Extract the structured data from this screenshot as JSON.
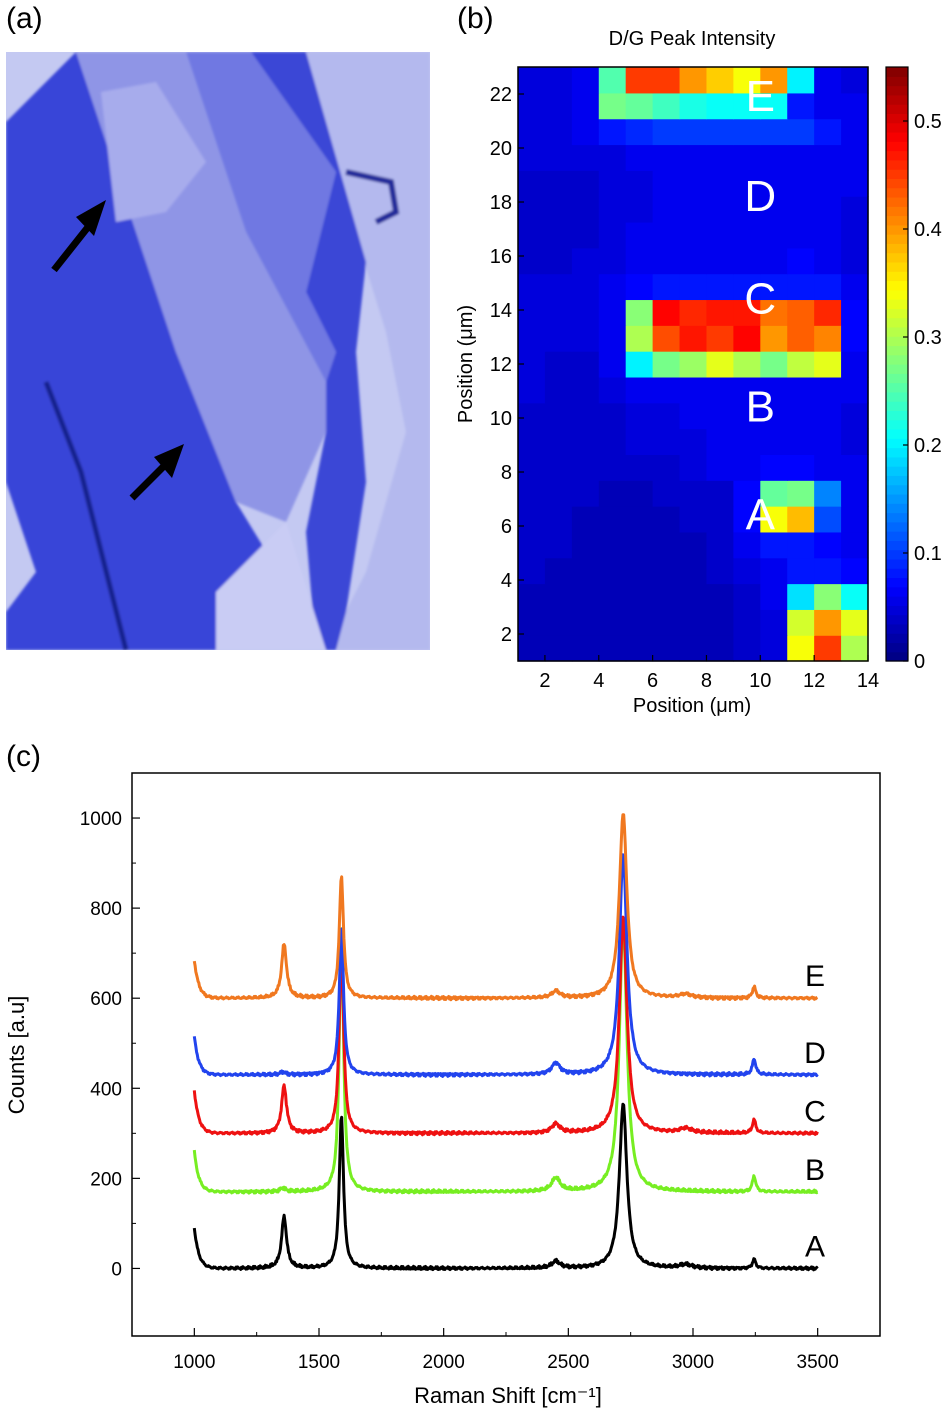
{
  "panels": {
    "a": {
      "label": "(a)"
    },
    "b": {
      "label": "(b)"
    },
    "c": {
      "label": "(c)"
    }
  },
  "chart_data": [
    {
      "panel": "b",
      "type": "heatmap",
      "title": "D/G Peak Intensity",
      "xlabel": "Position (μm)",
      "ylabel": "Position (μm)",
      "xlim": [
        1,
        14
      ],
      "ylim": [
        1,
        23
      ],
      "x_ticks": [
        2,
        4,
        6,
        8,
        10,
        12,
        14
      ],
      "y_ticks": [
        2,
        4,
        6,
        8,
        10,
        12,
        14,
        16,
        18,
        20,
        22
      ],
      "colorbar": {
        "min": 0,
        "max": 0.55,
        "ticks": [
          0,
          0.1,
          0.2,
          0.3,
          0.4,
          0.5
        ],
        "colormap": "jet"
      },
      "grid": false,
      "region_labels": [
        {
          "text": "E",
          "x": 10,
          "y": 22
        },
        {
          "text": "D",
          "x": 10,
          "y": 18.3
        },
        {
          "text": "C",
          "x": 10,
          "y": 14.5
        },
        {
          "text": "B",
          "x": 10,
          "y": 10.5
        },
        {
          "text": "A",
          "x": 10,
          "y": 6.5
        }
      ],
      "rows_bottom_to_top": [
        [
          0.03,
          0.03,
          0.03,
          0.03,
          0.03,
          0.03,
          0.03,
          0.03,
          0.04,
          0.05,
          0.34,
          0.45,
          0.3
        ],
        [
          0.03,
          0.03,
          0.03,
          0.03,
          0.03,
          0.03,
          0.03,
          0.03,
          0.04,
          0.05,
          0.32,
          0.4,
          0.33
        ],
        [
          0.03,
          0.03,
          0.03,
          0.03,
          0.03,
          0.03,
          0.03,
          0.03,
          0.04,
          0.06,
          0.19,
          0.28,
          0.21
        ],
        [
          0.04,
          0.03,
          0.03,
          0.03,
          0.03,
          0.03,
          0.03,
          0.04,
          0.05,
          0.06,
          0.08,
          0.08,
          0.07
        ],
        [
          0.04,
          0.04,
          0.03,
          0.03,
          0.03,
          0.03,
          0.03,
          0.04,
          0.06,
          0.08,
          0.08,
          0.07,
          0.06
        ],
        [
          0.04,
          0.04,
          0.03,
          0.03,
          0.03,
          0.03,
          0.04,
          0.04,
          0.07,
          0.34,
          0.38,
          0.11,
          0.06
        ],
        [
          0.04,
          0.04,
          0.04,
          0.03,
          0.03,
          0.04,
          0.04,
          0.04,
          0.07,
          0.26,
          0.27,
          0.14,
          0.06
        ],
        [
          0.04,
          0.04,
          0.04,
          0.04,
          0.04,
          0.04,
          0.05,
          0.06,
          0.06,
          0.07,
          0.07,
          0.06,
          0.06
        ],
        [
          0.04,
          0.04,
          0.04,
          0.04,
          0.05,
          0.05,
          0.05,
          0.06,
          0.06,
          0.06,
          0.06,
          0.06,
          0.05
        ],
        [
          0.04,
          0.04,
          0.04,
          0.04,
          0.05,
          0.05,
          0.06,
          0.06,
          0.06,
          0.06,
          0.06,
          0.06,
          0.05
        ],
        [
          0.05,
          0.04,
          0.04,
          0.05,
          0.06,
          0.06,
          0.06,
          0.06,
          0.06,
          0.06,
          0.06,
          0.06,
          0.06
        ],
        [
          0.05,
          0.04,
          0.04,
          0.06,
          0.2,
          0.27,
          0.29,
          0.33,
          0.3,
          0.27,
          0.31,
          0.33,
          0.06
        ],
        [
          0.05,
          0.05,
          0.05,
          0.06,
          0.3,
          0.44,
          0.47,
          0.45,
          0.48,
          0.4,
          0.43,
          0.41,
          0.07
        ],
        [
          0.05,
          0.05,
          0.05,
          0.06,
          0.28,
          0.48,
          0.46,
          0.47,
          0.47,
          0.42,
          0.43,
          0.46,
          0.07
        ],
        [
          0.05,
          0.05,
          0.05,
          0.06,
          0.07,
          0.08,
          0.08,
          0.08,
          0.08,
          0.08,
          0.08,
          0.08,
          0.06
        ],
        [
          0.04,
          0.04,
          0.05,
          0.05,
          0.06,
          0.06,
          0.06,
          0.06,
          0.06,
          0.06,
          0.07,
          0.06,
          0.05
        ],
        [
          0.04,
          0.04,
          0.04,
          0.05,
          0.06,
          0.06,
          0.06,
          0.06,
          0.06,
          0.06,
          0.06,
          0.06,
          0.05
        ],
        [
          0.04,
          0.04,
          0.04,
          0.05,
          0.05,
          0.06,
          0.06,
          0.06,
          0.06,
          0.06,
          0.06,
          0.06,
          0.05
        ],
        [
          0.04,
          0.04,
          0.04,
          0.05,
          0.05,
          0.06,
          0.06,
          0.06,
          0.06,
          0.06,
          0.06,
          0.06,
          0.06
        ],
        [
          0.05,
          0.05,
          0.05,
          0.05,
          0.06,
          0.06,
          0.06,
          0.06,
          0.06,
          0.06,
          0.06,
          0.06,
          0.06
        ],
        [
          0.05,
          0.05,
          0.06,
          0.08,
          0.09,
          0.1,
          0.1,
          0.1,
          0.1,
          0.1,
          0.1,
          0.08,
          0.06
        ],
        [
          0.05,
          0.05,
          0.06,
          0.27,
          0.26,
          0.24,
          0.22,
          0.21,
          0.21,
          0.21,
          0.08,
          0.06,
          0.06
        ],
        [
          0.05,
          0.05,
          0.06,
          0.25,
          0.45,
          0.45,
          0.4,
          0.37,
          0.34,
          0.4,
          0.2,
          0.06,
          0.05
        ]
      ]
    },
    {
      "panel": "c",
      "type": "line",
      "xlabel": "Raman Shift [cm⁻¹]",
      "ylabel": "Counts [a.u]",
      "xlim": [
        750,
        3750
      ],
      "ylim": [
        -150,
        1100
      ],
      "x_ticks": [
        1000,
        1500,
        2000,
        2500,
        3000,
        3500
      ],
      "y_ticks": [
        0,
        200,
        400,
        600,
        800,
        1000
      ],
      "legend": "curve labels at right",
      "grid": false,
      "series": [
        {
          "name": "A",
          "color": "#000000",
          "baseline": 0,
          "peaks": [
            [
              1360,
              115,
              12
            ],
            [
              1590,
              340,
              10
            ],
            [
              2450,
              15,
              20
            ],
            [
              2720,
              365,
              18
            ],
            [
              2970,
              8,
              30
            ],
            [
              3245,
              20,
              8
            ]
          ],
          "edge": 90
        },
        {
          "name": "B",
          "color": "#77ee22",
          "baseline": 170,
          "peaks": [
            [
              1355,
              8,
              12
            ],
            [
              1590,
              590,
              10
            ],
            [
              2450,
              30,
              20
            ],
            [
              2720,
              600,
              18
            ],
            [
              3245,
              35,
              8
            ]
          ],
          "edge": 90
        },
        {
          "name": "C",
          "color": "#ee1111",
          "baseline": 300,
          "peaks": [
            [
              1360,
              105,
              12
            ],
            [
              1590,
              430,
              10
            ],
            [
              2450,
              20,
              20
            ],
            [
              2720,
              480,
              18
            ],
            [
              2970,
              10,
              30
            ],
            [
              3245,
              30,
              8
            ]
          ],
          "edge": 95
        },
        {
          "name": "D",
          "color": "#2244ee",
          "baseline": 430,
          "peaks": [
            [
              1355,
              6,
              12
            ],
            [
              1590,
              325,
              10
            ],
            [
              2450,
              25,
              20
            ],
            [
              2720,
              490,
              18
            ],
            [
              3245,
              35,
              8
            ]
          ],
          "edge": 85
        },
        {
          "name": "E",
          "color": "#f07820",
          "baseline": 600,
          "peaks": [
            [
              1360,
              120,
              12
            ],
            [
              1590,
              270,
              10
            ],
            [
              2450,
              15,
              20
            ],
            [
              2720,
              410,
              18
            ],
            [
              2970,
              8,
              30
            ],
            [
              3245,
              25,
              8
            ]
          ],
          "edge": 85
        }
      ]
    }
  ]
}
